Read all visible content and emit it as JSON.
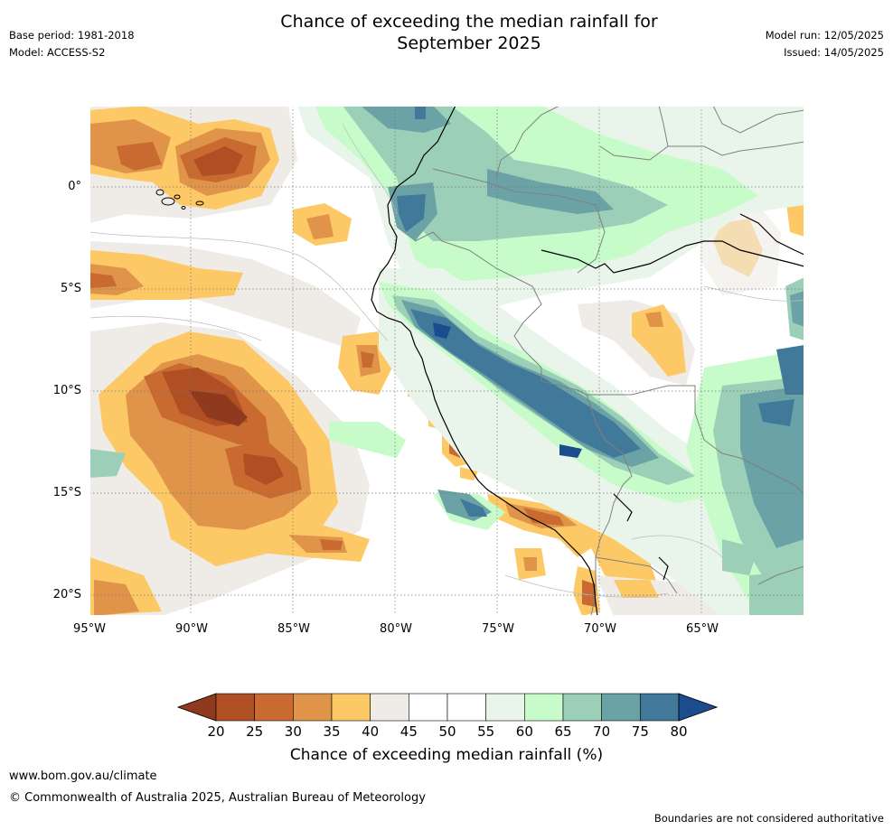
{
  "title_line1": "Chance of exceeding the median rainfall for",
  "title_line2": "September 2025",
  "base_period": "Base period: 1981-2018",
  "model": "Model: ACCESS-S2",
  "model_run": "Model run: 12/05/2025",
  "issued": "Issued: 14/05/2025",
  "lat_labels": [
    "0°",
    "5°S",
    "10°S",
    "15°S",
    "20°S"
  ],
  "lon_labels": [
    "95°W",
    "90°W",
    "85°W",
    "80°W",
    "75°W",
    "70°W",
    "65°W"
  ],
  "colorbar": {
    "ticks": [
      "20",
      "25",
      "30",
      "35",
      "40",
      "45",
      "50",
      "55",
      "60",
      "65",
      "70",
      "75",
      "80"
    ],
    "colors": [
      "#8f3a1f",
      "#b04f24",
      "#c96a31",
      "#e0944a",
      "#fdc966",
      "#efebe6",
      "#ffffff",
      "#ffffff",
      "#e9f5ea",
      "#c7fbc9",
      "#9ccfb7",
      "#6aa2a6",
      "#41799b",
      "#1b4d8e"
    ],
    "label": "Chance of exceeding median rainfall (%)"
  },
  "footer": {
    "url": "www.bom.gov.au/climate",
    "copyright": "© Commonwealth of Australia 2025, Australian Bureau of Meteorology",
    "disclaimer": "Boundaries are not considered authoritative"
  }
}
